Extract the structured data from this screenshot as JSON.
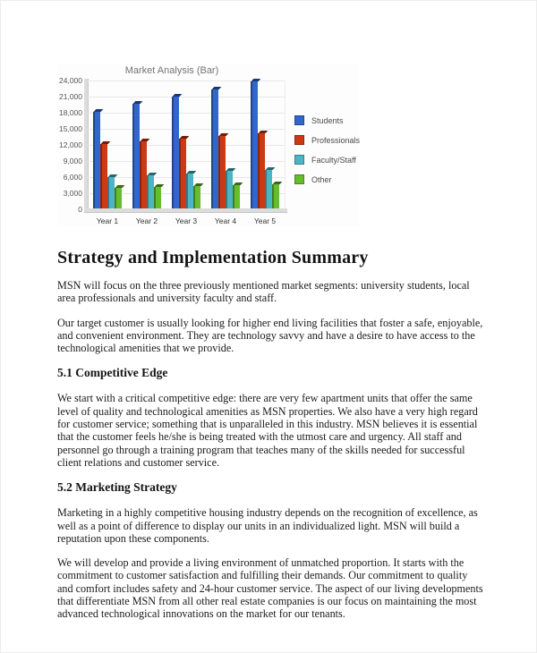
{
  "chart_data": {
    "type": "bar",
    "title": "Market Analysis (Bar)",
    "categories": [
      "Year 1",
      "Year 2",
      "Year 3",
      "Year 4",
      "Year 5"
    ],
    "series": [
      {
        "name": "Students",
        "color": "#3366cc",
        "values": [
          18200,
          19600,
          21000,
          22400,
          23800
        ]
      },
      {
        "name": "Professionals",
        "color": "#cc3912",
        "values": [
          12200,
          12700,
          13200,
          13700,
          14200
        ]
      },
      {
        "name": "Faculty/Staff",
        "color": "#4cb5c4",
        "values": [
          6000,
          6400,
          6700,
          7100,
          7400
        ]
      },
      {
        "name": "Other",
        "color": "#65bd2e",
        "values": [
          4000,
          4150,
          4300,
          4450,
          4600
        ]
      }
    ],
    "xlabel": "",
    "ylabel": "",
    "ylim": [
      0,
      24000
    ],
    "ytick_step": 3000,
    "yticks": [
      "24,000",
      "21,000",
      "18,000",
      "15,000",
      "12,000",
      "9,000",
      "6,000",
      "3,000",
      "0"
    ],
    "grid": true,
    "legend_position": "right",
    "style_3d": true
  },
  "document": {
    "h1": "Strategy and Implementation Summary",
    "intro": [
      "MSN will focus on the three previously mentioned market segments: university students, local area professionals and university faculty and staff.",
      "Our target customer is usually looking for higher end living facilities that foster a safe, enjoyable, and convenient environment. They are technology savvy and have a desire to have access to the technological amenities that we provide."
    ],
    "sections": [
      {
        "heading": "5.1 Competitive Edge",
        "paragraphs": [
          "We start with a critical competitive edge: there are very few apartment units that offer the same level of quality and technological amenities as MSN properties. We also have a very high regard for customer service; something that is unparalleled in this industry. MSN believes it is essential that the customer feels he/she is being treated with the utmost care and urgency. All staff and personnel go through a training program that teaches many of the skills needed for successful client relations and customer service."
        ]
      },
      {
        "heading": "5.2 Marketing Strategy",
        "paragraphs": [
          "Marketing in a highly competitive housing industry depends on the recognition of excellence, as well as a point of difference to display our units in an individualized light. MSN will build a reputation upon these components.",
          "We will develop and provide a living environment of unmatched proportion. It starts with the commitment to customer satisfaction and fulfilling their demands. Our commitment to quality and comfort includes safety and 24-hour customer service. The aspect of our living developments that differentiate MSN from all other real estate companies is our focus on maintaining the most advanced technological innovations on the market for our tenants."
        ]
      }
    ]
  }
}
